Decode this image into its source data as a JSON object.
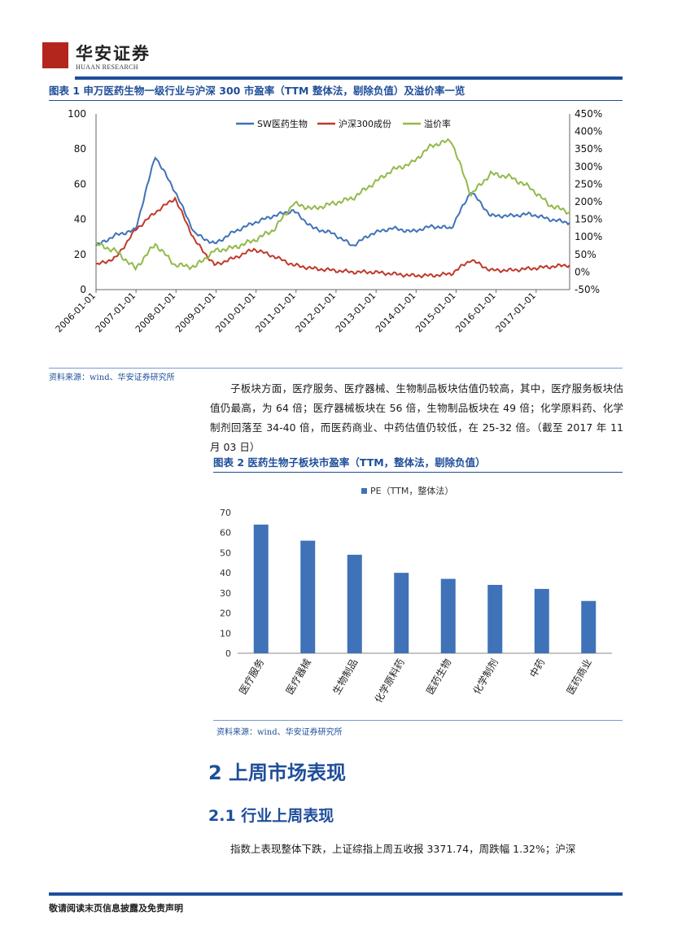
{
  "header": {
    "logo_name": "华安证券",
    "logo_sub": "HUAAN RESEARCH"
  },
  "figure1": {
    "title": "图表 1 申万医药生物一级行业与沪深 300 市盈率（TTM 整体法，剔除负值）及溢价率一览",
    "source": "资料来源：wind、华安证券研究所"
  },
  "paragraph1": "子板块方面，医疗服务、医疗器械、生物制品板块估值仍较高，其中，医疗服务板块估值仍最高，为 64 倍；医疗器械板块在 56 倍，生物制品板块在 49 倍；化学原料药、化学制剂回落至 34-40 倍，而医药商业、中药估值仍较低，在 25-32 倍。（截至 2017 年 11 月 03 日）",
  "figure2": {
    "title": "图表 2 医药生物子板块市盈率（TTM，整体法，剔除负值）",
    "source": "资料来源：wind、华安证券研究所"
  },
  "section2": {
    "heading": "2 上周市场表现",
    "sub_heading": "2.1 行业上周表现",
    "body": "指数上表现整体下跌，上证综指上周五收报 3371.74，周跌幅 1.32%；沪深"
  },
  "footer": "敬请阅读末页信息披露及免责声明",
  "colors": {
    "blue": "#3f72b8",
    "red": "#c0392b",
    "green": "#93b94a",
    "brand": "#1f4e9a"
  },
  "chart_data": [
    {
      "type": "line",
      "title": "申万医药生物一级行业与沪深 300 市盈率（TTM 整体法，剔除负值）及溢价率一览",
      "x": [
        "2006-01-01",
        "2006-07-01",
        "2007-01-01",
        "2007-07-01",
        "2008-01-01",
        "2008-07-01",
        "2009-01-01",
        "2009-07-01",
        "2010-01-01",
        "2010-07-01",
        "2011-01-01",
        "2011-07-01",
        "2012-01-01",
        "2012-07-01",
        "2013-01-01",
        "2013-07-01",
        "2014-01-01",
        "2014-07-01",
        "2015-01-01",
        "2015-07-01",
        "2016-01-01",
        "2016-07-01",
        "2017-01-01",
        "2017-07-01",
        "2017-11-03"
      ],
      "xticks": [
        "2006-01-01",
        "2007-01-01",
        "2008-01-01",
        "2009-01-01",
        "2010-01-01",
        "2011-01-01",
        "2012-01-01",
        "2013-01-01",
        "2014-01-01",
        "2015-01-01",
        "2016-01-01",
        "2017-01-01"
      ],
      "series": [
        {
          "name": "SW医药生物",
          "axis": "left",
          "values": [
            25,
            31,
            34,
            76,
            56,
            32,
            26,
            33,
            38,
            42,
            45,
            35,
            32,
            25,
            32,
            35,
            33,
            36,
            35,
            56,
            42,
            42,
            43,
            40,
            38
          ]
        },
        {
          "name": "沪深300成份",
          "axis": "left",
          "values": [
            14,
            18,
            34,
            44,
            52,
            28,
            14,
            18,
            23,
            19,
            14,
            12,
            11,
            10,
            10,
            9,
            8,
            8,
            9,
            17,
            11,
            11,
            12,
            13,
            14
          ]
        },
        {
          "name": "溢价率",
          "axis": "right",
          "values": [
            80,
            60,
            10,
            80,
            20,
            15,
            60,
            70,
            90,
            120,
            195,
            180,
            195,
            210,
            250,
            290,
            310,
            360,
            375,
            220,
            280,
            270,
            240,
            190,
            170
          ]
        }
      ],
      "ylim_left": [
        0,
        100
      ],
      "yticks_left": [
        "0",
        "20",
        "40",
        "60",
        "80",
        "100"
      ],
      "ylim_right": [
        -50,
        450
      ],
      "yticks_right": [
        "-50%",
        "0%",
        "50%",
        "100%",
        "150%",
        "200%",
        "250%",
        "300%",
        "350%",
        "400%",
        "450%"
      ],
      "legend": "top-center"
    },
    {
      "type": "bar",
      "title": "医药生物子板块市盈率（TTM，整体法，剔除负值）",
      "legend_label": "PE（TTM，整体法）",
      "categories": [
        "医疗服务",
        "医疗器械",
        "生物制品",
        "化学原料药",
        "医药生物",
        "化学制剂",
        "中药",
        "医药商业"
      ],
      "values": [
        64,
        56,
        49,
        40,
        37,
        34,
        32,
        26
      ],
      "ylim": [
        0,
        70
      ],
      "yticks": [
        "0",
        "10",
        "20",
        "30",
        "40",
        "50",
        "60",
        "70"
      ]
    }
  ]
}
